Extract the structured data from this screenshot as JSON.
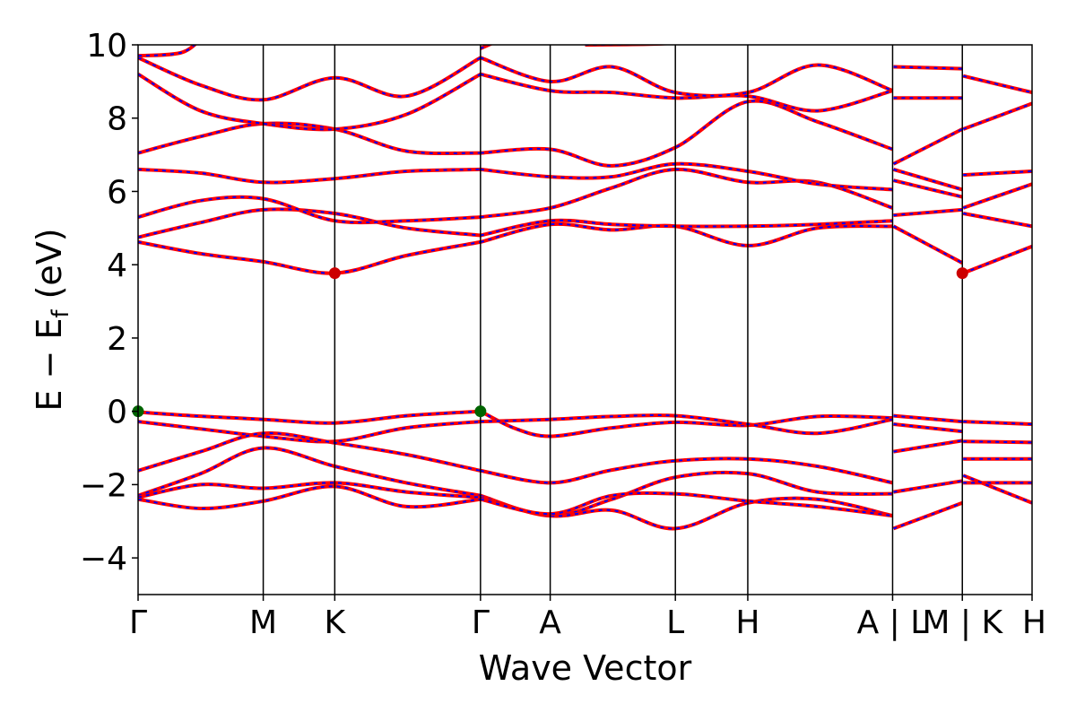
{
  "chart_data": {
    "type": "line",
    "title": "",
    "xlabel": "Wave Vector",
    "ylabel_parts": {
      "main": "E − E",
      "sub": "f",
      "unit": " (eV)"
    },
    "ylim": [
      -5,
      10
    ],
    "yticks": [
      -4,
      -2,
      0,
      2,
      4,
      6,
      8,
      10
    ],
    "ytick_labels": [
      "−4",
      "−2",
      "0",
      "2",
      "4",
      "6",
      "8",
      "10"
    ],
    "xlim": [
      0,
      1
    ],
    "kpoints": [
      {
        "label": "Γ",
        "x": 0.0
      },
      {
        "label": "M",
        "x": 0.14
      },
      {
        "label": "K",
        "x": 0.22
      },
      {
        "label": "Γ",
        "x": 0.383
      },
      {
        "label": "A",
        "x": 0.461
      },
      {
        "label": "L",
        "x": 0.601
      },
      {
        "label": "H",
        "x": 0.682
      },
      {
        "label": "A | L",
        "x": 0.844
      },
      {
        "label": "M | K",
        "x": 0.922
      },
      {
        "label": "H",
        "x": 1.0
      }
    ],
    "colors": {
      "main": "#ff0000",
      "dash": "#0000ff",
      "vbm": "#006400",
      "cbm": "#cc0000"
    },
    "vbm_points": [
      {
        "x": 0.0,
        "y": 0.0
      },
      {
        "x": 0.383,
        "y": 0.0
      }
    ],
    "cbm_points": [
      {
        "x": 0.22,
        "y": 3.77
      },
      {
        "x": 0.922,
        "y": 3.77
      }
    ],
    "series": [
      {
        "segments": [
          [
            [
              0.0,
              -0.02
            ],
            [
              0.06,
              -0.12
            ],
            [
              0.14,
              -0.22
            ],
            [
              0.22,
              -0.32
            ],
            [
              0.3,
              -0.12
            ],
            [
              0.383,
              0.0
            ]
          ],
          [
            [
              0.383,
              0.0
            ],
            [
              0.42,
              -0.45
            ],
            [
              0.461,
              -0.68
            ],
            [
              0.53,
              -0.45
            ],
            [
              0.601,
              -0.3
            ],
            [
              0.682,
              -0.38
            ],
            [
              0.76,
              -0.14
            ],
            [
              0.844,
              -0.18
            ]
          ],
          [
            [
              0.845,
              -0.12
            ],
            [
              0.922,
              -0.28
            ]
          ],
          [
            [
              0.923,
              -0.28
            ],
            [
              1.0,
              -0.35
            ]
          ]
        ]
      },
      {
        "segments": [
          [
            [
              0.0,
              -0.28
            ],
            [
              0.07,
              -0.48
            ],
            [
              0.14,
              -0.68
            ],
            [
              0.22,
              -0.82
            ],
            [
              0.3,
              -0.45
            ],
            [
              0.383,
              -0.28
            ]
          ],
          [
            [
              0.383,
              -0.28
            ],
            [
              0.461,
              -0.22
            ],
            [
              0.53,
              -0.14
            ],
            [
              0.601,
              -0.12
            ],
            [
              0.682,
              -0.35
            ],
            [
              0.76,
              -0.6
            ],
            [
              0.844,
              -0.22
            ]
          ],
          [
            [
              0.845,
              -0.35
            ],
            [
              0.922,
              -0.55
            ]
          ],
          [
            [
              0.923,
              -0.82
            ],
            [
              1.0,
              -0.85
            ]
          ]
        ]
      },
      {
        "segments": [
          [
            [
              0.0,
              -1.62
            ],
            [
              0.07,
              -1.1
            ],
            [
              0.14,
              -0.6
            ],
            [
              0.22,
              -0.86
            ],
            [
              0.3,
              -1.18
            ],
            [
              0.383,
              -1.62
            ]
          ],
          [
            [
              0.383,
              -1.62
            ],
            [
              0.461,
              -1.95
            ],
            [
              0.53,
              -1.6
            ],
            [
              0.601,
              -1.35
            ],
            [
              0.682,
              -1.3
            ],
            [
              0.76,
              -1.5
            ],
            [
              0.844,
              -1.95
            ]
          ],
          [
            [
              0.845,
              -1.1
            ],
            [
              0.922,
              -0.8
            ]
          ],
          [
            [
              0.923,
              -1.3
            ],
            [
              1.0,
              -1.3
            ]
          ]
        ]
      },
      {
        "segments": [
          [
            [
              0.0,
              -2.3
            ],
            [
              0.07,
              -1.7
            ],
            [
              0.14,
              -1.0
            ],
            [
              0.22,
              -1.5
            ],
            [
              0.3,
              -1.95
            ],
            [
              0.383,
              -2.3
            ]
          ],
          [
            [
              0.383,
              -2.3
            ],
            [
              0.461,
              -2.85
            ],
            [
              0.53,
              -2.4
            ],
            [
              0.601,
              -1.8
            ],
            [
              0.682,
              -1.7
            ],
            [
              0.76,
              -2.2
            ],
            [
              0.844,
              -2.25
            ]
          ],
          [
            [
              0.845,
              -2.2
            ],
            [
              0.922,
              -1.9
            ]
          ],
          [
            [
              0.923,
              -1.95
            ],
            [
              1.0,
              -1.95
            ]
          ]
        ]
      },
      {
        "segments": [
          [
            [
              0.0,
              -2.35
            ],
            [
              0.07,
              -2.0
            ],
            [
              0.14,
              -2.1
            ],
            [
              0.22,
              -1.95
            ],
            [
              0.3,
              -2.2
            ],
            [
              0.383,
              -2.35
            ]
          ],
          [
            [
              0.383,
              -2.35
            ],
            [
              0.461,
              -2.85
            ],
            [
              0.53,
              -2.7
            ],
            [
              0.601,
              -3.2
            ],
            [
              0.682,
              -2.5
            ],
            [
              0.76,
              -2.4
            ],
            [
              0.844,
              -2.85
            ]
          ],
          [
            [
              0.845,
              -3.2
            ],
            [
              0.922,
              -2.5
            ]
          ],
          [
            [
              0.923,
              -1.75
            ],
            [
              1.0,
              -2.5
            ]
          ]
        ]
      },
      {
        "segments": [
          [
            [
              0.0,
              -2.4
            ],
            [
              0.07,
              -2.65
            ],
            [
              0.14,
              -2.45
            ],
            [
              0.22,
              -2.05
            ],
            [
              0.3,
              -2.6
            ],
            [
              0.383,
              -2.4
            ]
          ],
          [
            [
              0.383,
              -2.4
            ],
            [
              0.461,
              -2.8
            ],
            [
              0.53,
              -2.3
            ],
            [
              0.601,
              -2.25
            ],
            [
              0.682,
              -2.45
            ],
            [
              0.76,
              -2.6
            ],
            [
              0.844,
              -2.85
            ]
          ]
        ]
      },
      {
        "segments": [
          [
            [
              0.0,
              4.62
            ],
            [
              0.07,
              4.3
            ],
            [
              0.14,
              4.08
            ],
            [
              0.22,
              3.77
            ],
            [
              0.3,
              4.25
            ],
            [
              0.383,
              4.62
            ]
          ],
          [
            [
              0.383,
              4.62
            ],
            [
              0.461,
              5.1
            ],
            [
              0.53,
              4.95
            ],
            [
              0.601,
              5.05
            ],
            [
              0.682,
              4.52
            ],
            [
              0.76,
              5.0
            ],
            [
              0.844,
              5.05
            ]
          ],
          [
            [
              0.845,
              5.05
            ],
            [
              0.922,
              4.05
            ]
          ],
          [
            [
              0.923,
              3.77
            ],
            [
              1.0,
              4.5
            ]
          ]
        ]
      },
      {
        "segments": [
          [
            [
              0.0,
              4.75
            ],
            [
              0.07,
              5.15
            ],
            [
              0.14,
              5.5
            ],
            [
              0.22,
              5.4
            ],
            [
              0.3,
              5.0
            ],
            [
              0.383,
              4.8
            ]
          ],
          [
            [
              0.383,
              4.8
            ],
            [
              0.461,
              5.2
            ],
            [
              0.53,
              5.1
            ],
            [
              0.601,
              5.05
            ],
            [
              0.682,
              5.05
            ],
            [
              0.76,
              5.1
            ],
            [
              0.844,
              5.2
            ]
          ],
          [
            [
              0.845,
              5.35
            ],
            [
              0.922,
              5.5
            ]
          ],
          [
            [
              0.923,
              5.4
            ],
            [
              1.0,
              5.05
            ]
          ]
        ]
      },
      {
        "segments": [
          [
            [
              0.0,
              5.3
            ],
            [
              0.07,
              5.75
            ],
            [
              0.14,
              5.8
            ],
            [
              0.22,
              5.2
            ],
            [
              0.3,
              5.2
            ],
            [
              0.383,
              5.3
            ]
          ],
          [
            [
              0.383,
              5.3
            ],
            [
              0.461,
              5.55
            ],
            [
              0.53,
              6.1
            ],
            [
              0.601,
              6.6
            ],
            [
              0.682,
              6.25
            ],
            [
              0.76,
              6.25
            ],
            [
              0.844,
              5.55
            ]
          ],
          [
            [
              0.845,
              6.3
            ],
            [
              0.922,
              5.85
            ]
          ],
          [
            [
              0.923,
              5.55
            ],
            [
              1.0,
              6.2
            ]
          ]
        ]
      },
      {
        "segments": [
          [
            [
              0.0,
              6.6
            ],
            [
              0.07,
              6.5
            ],
            [
              0.14,
              6.25
            ],
            [
              0.22,
              6.35
            ],
            [
              0.3,
              6.55
            ],
            [
              0.383,
              6.6
            ]
          ],
          [
            [
              0.383,
              6.6
            ],
            [
              0.461,
              6.4
            ],
            [
              0.53,
              6.4
            ],
            [
              0.601,
              6.75
            ],
            [
              0.682,
              6.55
            ],
            [
              0.76,
              6.2
            ],
            [
              0.844,
              6.05
            ]
          ],
          [
            [
              0.845,
              6.6
            ],
            [
              0.922,
              6.05
            ]
          ],
          [
            [
              0.923,
              6.45
            ],
            [
              1.0,
              6.55
            ]
          ]
        ]
      },
      {
        "segments": [
          [
            [
              0.0,
              7.05
            ],
            [
              0.07,
              7.5
            ],
            [
              0.14,
              7.85
            ],
            [
              0.22,
              7.7
            ],
            [
              0.3,
              7.1
            ],
            [
              0.383,
              7.05
            ]
          ],
          [
            [
              0.383,
              7.05
            ],
            [
              0.461,
              7.15
            ],
            [
              0.53,
              6.7
            ],
            [
              0.601,
              7.2
            ],
            [
              0.682,
              8.45
            ],
            [
              0.76,
              7.9
            ],
            [
              0.844,
              7.15
            ]
          ],
          [
            [
              0.845,
              6.75
            ],
            [
              0.922,
              7.7
            ]
          ],
          [
            [
              0.923,
              7.7
            ],
            [
              1.0,
              8.4
            ]
          ]
        ]
      },
      {
        "segments": [
          [
            [
              0.0,
              9.2
            ],
            [
              0.07,
              8.2
            ],
            [
              0.14,
              7.85
            ],
            [
              0.22,
              7.7
            ],
            [
              0.3,
              8.1
            ],
            [
              0.383,
              9.2
            ]
          ],
          [
            [
              0.383,
              9.2
            ],
            [
              0.461,
              8.75
            ],
            [
              0.53,
              8.7
            ],
            [
              0.601,
              8.55
            ],
            [
              0.682,
              8.6
            ],
            [
              0.76,
              8.2
            ],
            [
              0.844,
              8.75
            ]
          ],
          [
            [
              0.845,
              8.55
            ],
            [
              0.922,
              8.55
            ]
          ]
        ]
      },
      {
        "segments": [
          [
            [
              0.0,
              9.65
            ],
            [
              0.07,
              8.9
            ],
            [
              0.14,
              8.5
            ],
            [
              0.22,
              9.1
            ],
            [
              0.3,
              8.6
            ],
            [
              0.383,
              9.65
            ]
          ],
          [
            [
              0.383,
              9.65
            ],
            [
              0.461,
              9.0
            ],
            [
              0.53,
              9.4
            ],
            [
              0.601,
              8.7
            ],
            [
              0.682,
              8.7
            ],
            [
              0.76,
              9.45
            ],
            [
              0.844,
              8.75
            ]
          ],
          [
            [
              0.845,
              9.4
            ],
            [
              0.922,
              9.35
            ]
          ],
          [
            [
              0.923,
              9.15
            ],
            [
              1.0,
              8.7
            ]
          ]
        ]
      },
      {
        "segments": [
          [
            [
              0.0,
              9.7
            ],
            [
              0.05,
              9.8
            ],
            [
              0.075,
              10.3
            ]
          ],
          [
            [
              0.383,
              9.9
            ],
            [
              0.42,
              10.3
            ]
          ],
          [
            [
              0.5,
              10.0
            ],
            [
              0.601,
              10.05
            ],
            [
              0.66,
              10.3
            ]
          ],
          [
            [
              0.78,
              10.1
            ],
            [
              0.844,
              10.05
            ]
          ]
        ]
      }
    ]
  }
}
